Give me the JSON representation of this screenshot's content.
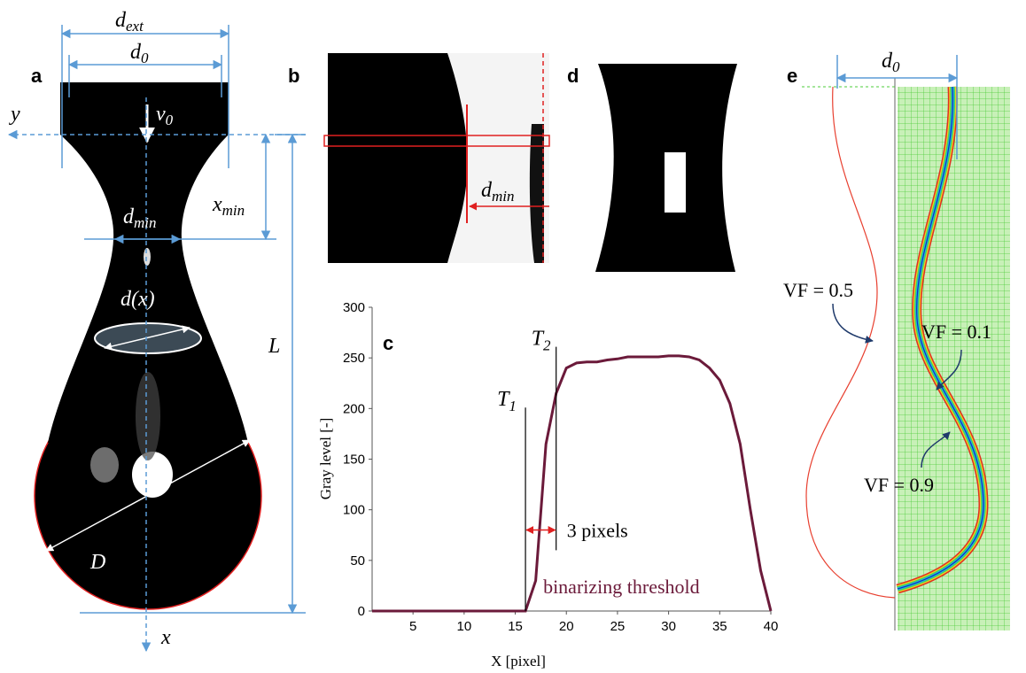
{
  "panel_labels": [
    "a",
    "b",
    "c",
    "d",
    "e"
  ],
  "panel_a": {
    "d_ext": {
      "text": "d",
      "sub": "ext"
    },
    "d_0": {
      "text": "d",
      "sub": "0"
    },
    "v_0": {
      "text": "v",
      "sub": "0"
    },
    "y_axis": "y",
    "d_min": {
      "text": "d",
      "sub": "min"
    },
    "x_min": {
      "text": "x",
      "sub": "min"
    },
    "d_x": "d(x)",
    "L": "L",
    "D": "D",
    "x_axis": "x"
  },
  "panel_b": {
    "d_min": {
      "text": "d",
      "sub": "min"
    }
  },
  "panel_e": {
    "d_0": {
      "text": "d",
      "sub": "0"
    },
    "vf_labels": [
      "VF = 0.5",
      "VF = 0.1",
      "VF = 0.9"
    ]
  },
  "chart_data": {
    "type": "line",
    "x_label": "X [pixel]",
    "y_label": "Gray level [-]",
    "x": [
      1,
      2,
      3,
      4,
      5,
      6,
      7,
      8,
      9,
      10,
      11,
      12,
      13,
      14,
      15,
      16,
      17,
      18,
      19,
      20,
      21,
      22,
      23,
      24,
      25,
      26,
      27,
      28,
      29,
      30,
      31,
      32,
      33,
      34,
      35,
      36,
      37,
      38,
      39,
      40
    ],
    "values": [
      0,
      0,
      0,
      0,
      0,
      0,
      0,
      0,
      0,
      0,
      0,
      0,
      0,
      0,
      0,
      0,
      30,
      165,
      215,
      240,
      245,
      246,
      246,
      248,
      249,
      251,
      251,
      251,
      251,
      252,
      252,
      251,
      248,
      240,
      228,
      205,
      165,
      100,
      40,
      0
    ],
    "color": "#6b1a3a",
    "xlim": [
      1,
      40
    ],
    "ylim": [
      0,
      300
    ],
    "xticks": [
      5,
      10,
      15,
      20,
      25,
      30,
      35,
      40
    ],
    "yticks": [
      0,
      50,
      100,
      150,
      200,
      250,
      300
    ],
    "thresholds": [
      {
        "text": "T",
        "sub": "1",
        "x": 16
      },
      {
        "text": "T",
        "sub": "2",
        "x": 19
      }
    ],
    "annotations": [
      "3 pixels",
      "binarizing threshold"
    ]
  }
}
